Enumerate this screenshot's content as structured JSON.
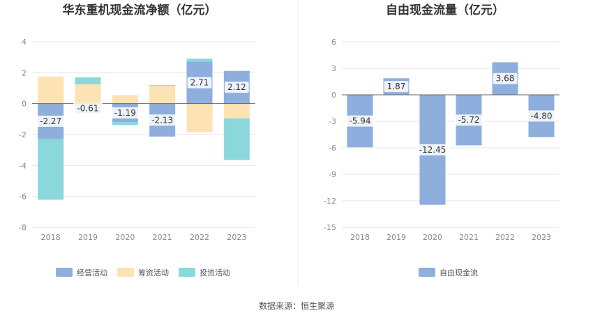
{
  "source_text": "数据来源：恒生聚源",
  "colors": {
    "operating": "#8eaedd",
    "financing": "#fde2b3",
    "investing": "#8ad8dc",
    "fcf": "#8eaedd",
    "grid": "#e6e6e6",
    "zero": "#666666"
  },
  "chart_data": [
    {
      "type": "bar",
      "stacked": true,
      "title": "华东重机现金流净额（亿元）",
      "categories": [
        "2018",
        "2019",
        "2020",
        "2021",
        "2022",
        "2023"
      ],
      "ylim": [
        -8,
        4
      ],
      "yticks": [
        4,
        2,
        0,
        -2,
        -4,
        -6,
        -8
      ],
      "grid": true,
      "legend_position": "bottom",
      "series": [
        {
          "name": "经营活动",
          "key": "operating",
          "values": [
            -2.27,
            -0.61,
            -1.19,
            -2.13,
            2.71,
            2.12
          ],
          "labels": [
            "-2.27",
            "-0.61",
            "-1.19",
            "-2.13",
            "2.71",
            "2.12"
          ]
        },
        {
          "name": "筹资活动",
          "key": "financing",
          "values": [
            1.75,
            1.25,
            0.55,
            1.15,
            -1.85,
            -0.95
          ]
        },
        {
          "name": "投资活动",
          "key": "investing",
          "values": [
            -3.95,
            0.45,
            -0.2,
            0.05,
            0.2,
            -2.7
          ]
        }
      ]
    },
    {
      "type": "bar",
      "title": "自由现金流量（亿元）",
      "categories": [
        "2018",
        "2019",
        "2020",
        "2021",
        "2022",
        "2023"
      ],
      "ylim": [
        -15,
        6
      ],
      "yticks": [
        6,
        3,
        0,
        -3,
        -6,
        -9,
        -12,
        -15
      ],
      "grid": true,
      "legend_position": "bottom",
      "series": [
        {
          "name": "自由现金流",
          "key": "fcf",
          "values": [
            -5.94,
            1.87,
            -12.45,
            -5.72,
            3.68,
            -4.8
          ],
          "labels": [
            "-5.94",
            "1.87",
            "-12.45",
            "-5.72",
            "3.68",
            "-4.80"
          ]
        }
      ]
    }
  ]
}
